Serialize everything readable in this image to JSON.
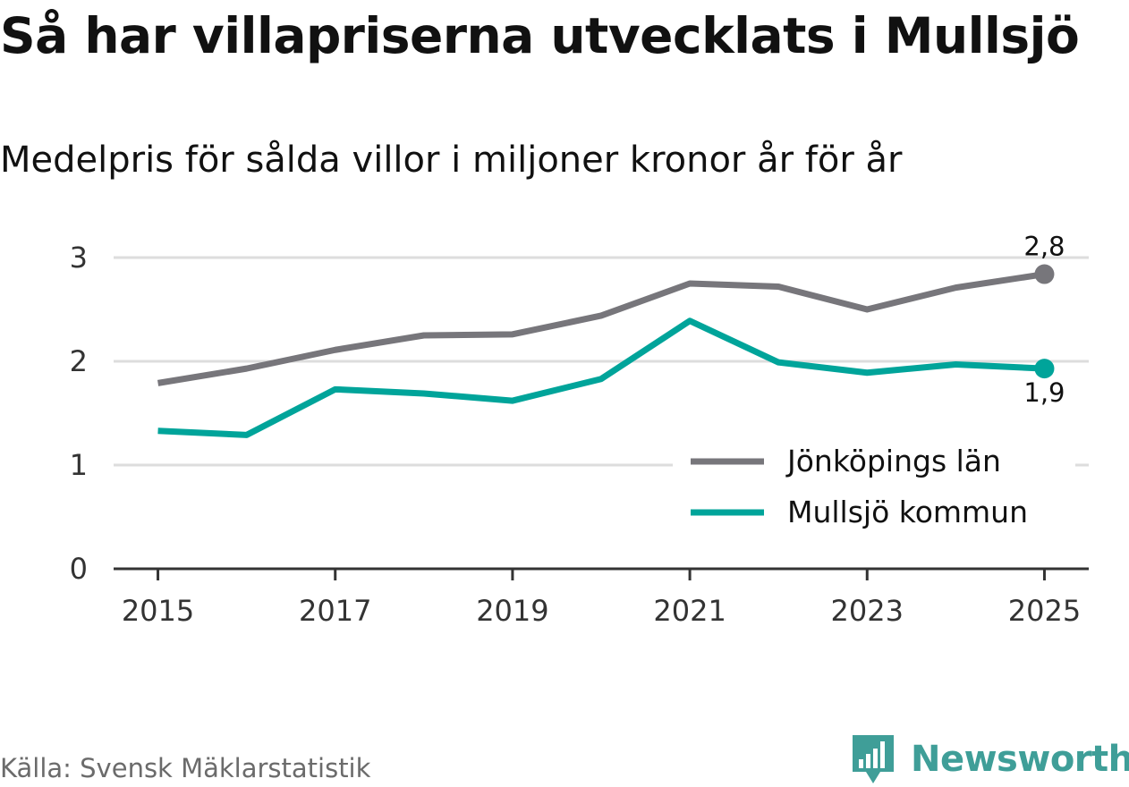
{
  "header": {
    "title": "Så har villapriserna utvecklats i Mullsjö",
    "subtitle": "Medelpris för sålda villor i miljoner kronor år för år"
  },
  "footer": {
    "source": "Källa: Svensk Mäklarstatistik",
    "brand": "Newsworthy"
  },
  "colors": {
    "gridline": "#dddddd",
    "axis": "#333333",
    "jonkoping": "#77767b",
    "mullsjo": "#00a49a",
    "brand": "#3f9e98"
  },
  "chart_data": {
    "type": "line",
    "title": "Så har villapriserna utvecklats i Mullsjö",
    "subtitle": "Medelpris för sålda villor i miljoner kronor år för år",
    "xlabel": "",
    "ylabel": "",
    "x": [
      2015,
      2016,
      2017,
      2018,
      2019,
      2020,
      2021,
      2022,
      2023,
      2024,
      2025
    ],
    "xticks": [
      "2015",
      "2017",
      "2019",
      "2021",
      "2023",
      "2025"
    ],
    "yticks": [
      "0",
      "1",
      "2",
      "3"
    ],
    "ylim": [
      0,
      3
    ],
    "xlim": [
      2014.5,
      2025.5
    ],
    "grid": true,
    "legend_position": "bottom-right",
    "series": [
      {
        "name": "Jönköpings län",
        "color_key": "jonkoping",
        "values": [
          1.79,
          1.93,
          2.11,
          2.25,
          2.26,
          2.44,
          2.75,
          2.72,
          2.5,
          2.71,
          2.84
        ],
        "end_label": "2,8"
      },
      {
        "name": "Mullsjö kommun",
        "color_key": "mullsjo",
        "values": [
          1.33,
          1.29,
          1.73,
          1.69,
          1.62,
          1.83,
          2.39,
          1.99,
          1.89,
          1.97,
          1.93
        ],
        "end_label": "1,9"
      }
    ]
  }
}
